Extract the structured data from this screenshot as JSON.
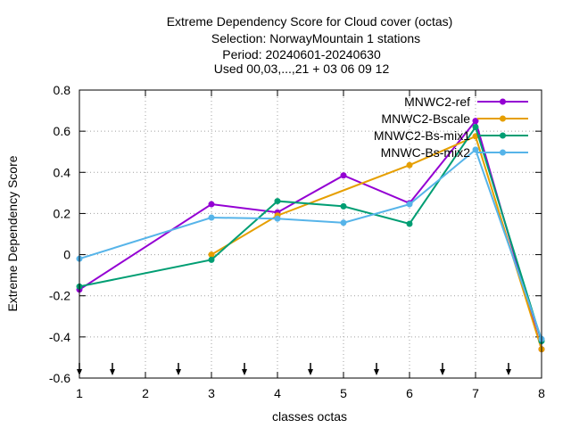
{
  "chart_data": {
    "type": "line",
    "title_lines": [
      "Extreme Dependency Score  for Cloud cover (octas)",
      "Selection: NorwayMountain      1 stations",
      "Period: 20240601-20240630",
      "Used 00,03,...,21 + 03 06 09 12"
    ],
    "xlabel": "classes octas",
    "ylabel": "Extreme Dependency Score",
    "xlim": [
      1,
      8
    ],
    "ylim": [
      -0.6,
      0.8
    ],
    "xticks": [
      1,
      2,
      3,
      4,
      5,
      6,
      7,
      8
    ],
    "yticks": [
      -0.6,
      -0.4,
      -0.2,
      0,
      0.2,
      0.4,
      0.6,
      0.8
    ],
    "ytick_labels": [
      "-0.6",
      "-0.4",
      "-0.2",
      "0",
      "0.2",
      "0.4",
      "0.6",
      "0.8"
    ],
    "grid": true,
    "legend_position": "top-right",
    "arrow_markers_x": [
      1,
      1.5,
      2.5,
      3.5,
      4.5,
      5.5,
      6.5,
      7.5
    ],
    "series": [
      {
        "name": "MNWC2-ref",
        "color": "#9400d3",
        "points": [
          [
            1,
            -0.17
          ],
          [
            3,
            0.245
          ],
          [
            4,
            0.205
          ],
          [
            5,
            0.385
          ],
          [
            6,
            0.25
          ],
          [
            7,
            0.65
          ],
          [
            8,
            -0.46
          ]
        ]
      },
      {
        "name": "MNWC2-Bscale",
        "color": "#e69f00",
        "points": [
          [
            3,
            0.0
          ],
          [
            4,
            0.19
          ],
          [
            6,
            0.435
          ],
          [
            7,
            0.575
          ],
          [
            8,
            -0.46
          ]
        ]
      },
      {
        "name": "MNWC2-Bs-mix1",
        "color": "#009e73",
        "points": [
          [
            1,
            -0.155
          ],
          [
            3,
            -0.025
          ],
          [
            4,
            0.26
          ],
          [
            5,
            0.235
          ],
          [
            6,
            0.15
          ],
          [
            7,
            0.62
          ],
          [
            8,
            -0.42
          ]
        ]
      },
      {
        "name": "MNWC-Bs-mix2",
        "color": "#56b4e9",
        "points": [
          [
            1,
            -0.02
          ],
          [
            3,
            0.18
          ],
          [
            4,
            0.175
          ],
          [
            5,
            0.155
          ],
          [
            6,
            0.245
          ],
          [
            7,
            0.51
          ],
          [
            8,
            -0.41
          ]
        ]
      }
    ]
  }
}
